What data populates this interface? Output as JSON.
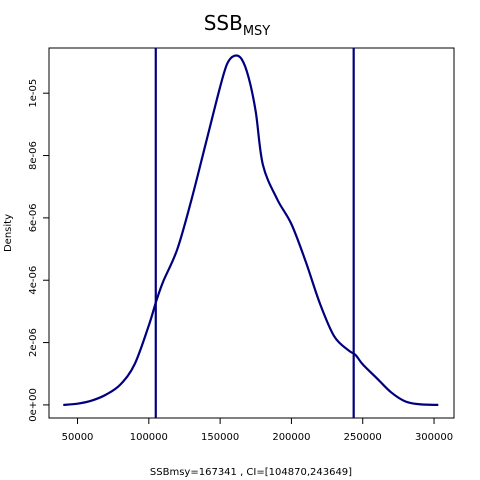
{
  "chart_data": {
    "type": "line",
    "title": "SSB",
    "title_subscript": "MSY",
    "xlabel": "SSBmsy=167341 , CI=[104870,243649]",
    "ylabel": "Density",
    "xlim": [
      30000,
      314000
    ],
    "ylim": [
      -4.2e-07,
      1.145e-05
    ],
    "x_ticks": [
      {
        "value": 50000,
        "label": "50000"
      },
      {
        "value": 100000,
        "label": "100000"
      },
      {
        "value": 150000,
        "label": "150000"
      },
      {
        "value": 200000,
        "label": "200000"
      },
      {
        "value": 250000,
        "label": "250000"
      },
      {
        "value": 300000,
        "label": "300000"
      }
    ],
    "y_ticks": [
      {
        "value": 0,
        "label": "0e+00"
      },
      {
        "value": 2e-06,
        "label": "2e-06"
      },
      {
        "value": 4e-06,
        "label": "4e-06"
      },
      {
        "value": 6e-06,
        "label": "6e-06"
      },
      {
        "value": 8e-06,
        "label": "8e-06"
      },
      {
        "value": 1e-05,
        "label": "1e-05"
      }
    ],
    "series": [
      {
        "x": [
          40000,
          50000,
          60000,
          70000,
          80000,
          90000,
          100000,
          105000,
          110000,
          120000,
          130000,
          140000,
          150000,
          155000,
          160000,
          165000,
          170000,
          175000,
          180000,
          190000,
          200000,
          210000,
          220000,
          230000,
          240000,
          245000,
          250000,
          260000,
          270000,
          280000,
          290000,
          303000
        ],
        "y": [
          0,
          4e-08,
          1.4e-07,
          3.3e-07,
          6.5e-07,
          1.3e-06,
          2.55e-06,
          3.3e-06,
          3.95e-06,
          5e-06,
          6.6e-06,
          8.4e-06,
          1.02e-05,
          1.095e-05,
          1.12e-05,
          1.11e-05,
          1.05e-05,
          9.4e-06,
          7.7e-06,
          6.6e-06,
          5.8e-06,
          4.6e-06,
          3.25e-06,
          2.2e-06,
          1.75e-06,
          1.6e-06,
          1.3e-06,
          8.5e-07,
          4e-07,
          1.1e-07,
          2e-08,
          0
        ]
      }
    ],
    "vlines": [
      104870,
      243649
    ],
    "line_color": "#00007f",
    "grid": false
  }
}
